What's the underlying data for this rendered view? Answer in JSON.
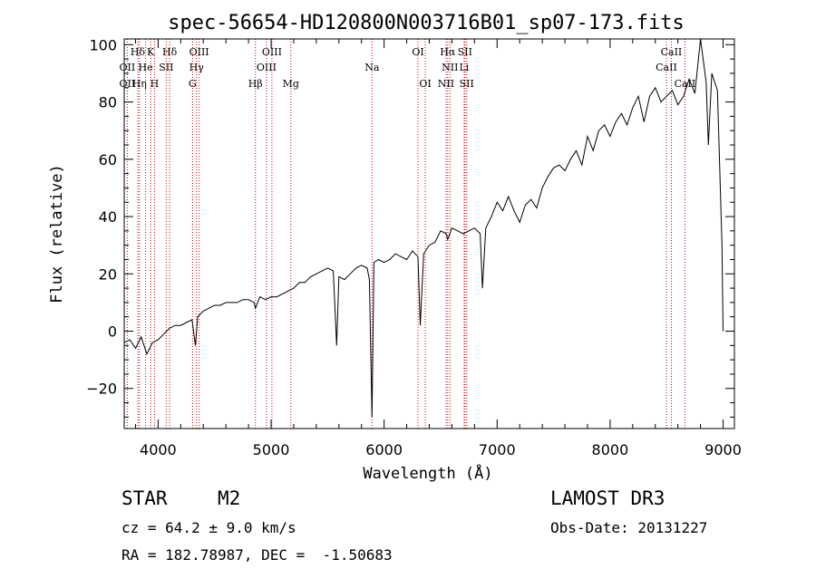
{
  "chart_data": {
    "type": "line",
    "title": "spec-56654-HD120800N003716B01_sp07-173.fits",
    "xlabel": "Wavelength (Å)",
    "ylabel": "Flux (relative)",
    "xlim": [
      3700,
      9100
    ],
    "ylim": [
      -34,
      102
    ],
    "x_ticks": [
      4000,
      5000,
      6000,
      7000,
      8000,
      9000
    ],
    "y_ticks": [
      -20,
      0,
      20,
      40,
      60,
      80,
      100
    ],
    "grid": false,
    "series": [
      {
        "x": [
          3700,
          3750,
          3800,
          3850,
          3900,
          3950,
          4000,
          4050,
          4100,
          4150,
          4200,
          4250,
          4300,
          4330,
          4350,
          4400,
          4450,
          4500,
          4550,
          4600,
          4650,
          4700,
          4750,
          4800,
          4850,
          4861,
          4900,
          4950,
          5000,
          5050,
          5100,
          5150,
          5200,
          5250,
          5300,
          5350,
          5400,
          5450,
          5500,
          5550,
          5580,
          5600,
          5650,
          5700,
          5750,
          5800,
          5850,
          5870,
          5893,
          5910,
          5950,
          6000,
          6050,
          6100,
          6150,
          6200,
          6250,
          6300,
          6320,
          6350,
          6400,
          6450,
          6500,
          6550,
          6563,
          6600,
          6650,
          6700,
          6750,
          6800,
          6850,
          6870,
          6900,
          6950,
          7000,
          7050,
          7100,
          7150,
          7200,
          7250,
          7300,
          7350,
          7400,
          7450,
          7500,
          7550,
          7600,
          7650,
          7700,
          7750,
          7800,
          7850,
          7900,
          7950,
          8000,
          8050,
          8100,
          8150,
          8200,
          8250,
          8300,
          8350,
          8400,
          8450,
          8500,
          8550,
          8600,
          8650,
          8700,
          8750,
          8800,
          8850,
          8870,
          8900,
          8950,
          8990,
          9000
        ],
        "y": [
          -4,
          -3,
          -6,
          -2,
          -8,
          -4,
          -3,
          -1,
          1,
          2,
          2,
          3,
          4,
          -5,
          5,
          7,
          8,
          9,
          9,
          10,
          10,
          10,
          11,
          11,
          10,
          8,
          12,
          11,
          12,
          12,
          13,
          14,
          15,
          17,
          17,
          19,
          20,
          21,
          22,
          21,
          -5,
          19,
          18,
          20,
          22,
          23,
          22,
          18,
          -30,
          24,
          25,
          24,
          25,
          27,
          26,
          25,
          28,
          26,
          2,
          27,
          30,
          31,
          35,
          34,
          32,
          36,
          35,
          34,
          35,
          36,
          34,
          15,
          36,
          40,
          45,
          42,
          47,
          42,
          38,
          44,
          46,
          43,
          50,
          54,
          57,
          58,
          56,
          60,
          63,
          58,
          68,
          63,
          70,
          72,
          68,
          73,
          76,
          72,
          78,
          82,
          73,
          82,
          85,
          80,
          82,
          84,
          79,
          82,
          88,
          83,
          102,
          87,
          65,
          90,
          84,
          30,
          0
        ]
      }
    ],
    "line_markers": [
      {
        "label": "Hδ",
        "x": 3820,
        "row": 1
      },
      {
        "label": "K",
        "x": 3934,
        "row": 1
      },
      {
        "label": "Hδ",
        "x": 4102,
        "row": 1
      },
      {
        "label": "OIII",
        "x": 4363,
        "row": 1
      },
      {
        "label": "OIII",
        "x": 5007,
        "row": 1
      },
      {
        "label": "OI",
        "x": 6300,
        "row": 1
      },
      {
        "label": "Hα",
        "x": 6563,
        "row": 1
      },
      {
        "label": "SII",
        "x": 6716,
        "row": 1
      },
      {
        "label": "CaII",
        "x": 8542,
        "row": 1
      },
      {
        "label": "OII",
        "x": 3727,
        "row": 2
      },
      {
        "label": "He",
        "x": 3889,
        "row": 2
      },
      {
        "label": "SII",
        "x": 4072,
        "row": 2
      },
      {
        "label": "Hγ",
        "x": 4340,
        "row": 2
      },
      {
        "label": "OIII",
        "x": 4959,
        "row": 2
      },
      {
        "label": "Na",
        "x": 5893,
        "row": 2
      },
      {
        "label": "NII",
        "x": 6583,
        "row": 2
      },
      {
        "label": "Li",
        "x": 6708,
        "row": 2
      },
      {
        "label": "CaII",
        "x": 8498,
        "row": 2
      },
      {
        "label": "OII",
        "x": 3727,
        "row": 3
      },
      {
        "label": "Hη",
        "x": 3835,
        "row": 3
      },
      {
        "label": "H",
        "x": 3968,
        "row": 3
      },
      {
        "label": "G",
        "x": 4305,
        "row": 3
      },
      {
        "label": "Hβ",
        "x": 4861,
        "row": 3
      },
      {
        "label": "Mg",
        "x": 5175,
        "row": 3
      },
      {
        "label": "OI",
        "x": 6364,
        "row": 3
      },
      {
        "label": "NII",
        "x": 6548,
        "row": 3
      },
      {
        "label": "SII",
        "x": 6731,
        "row": 3
      },
      {
        "label": "CaII",
        "x": 8662,
        "row": 3
      }
    ],
    "marker_color": "#cc0000"
  },
  "info": {
    "class": "STAR",
    "subclass": "M2",
    "survey": "LAMOST DR3",
    "cz": "cz = 64.2 ± 9.0 km/s",
    "obs_date": "Obs-Date: 20131227",
    "radec": "RA = 182.78987, DEC =  -1.50683"
  }
}
